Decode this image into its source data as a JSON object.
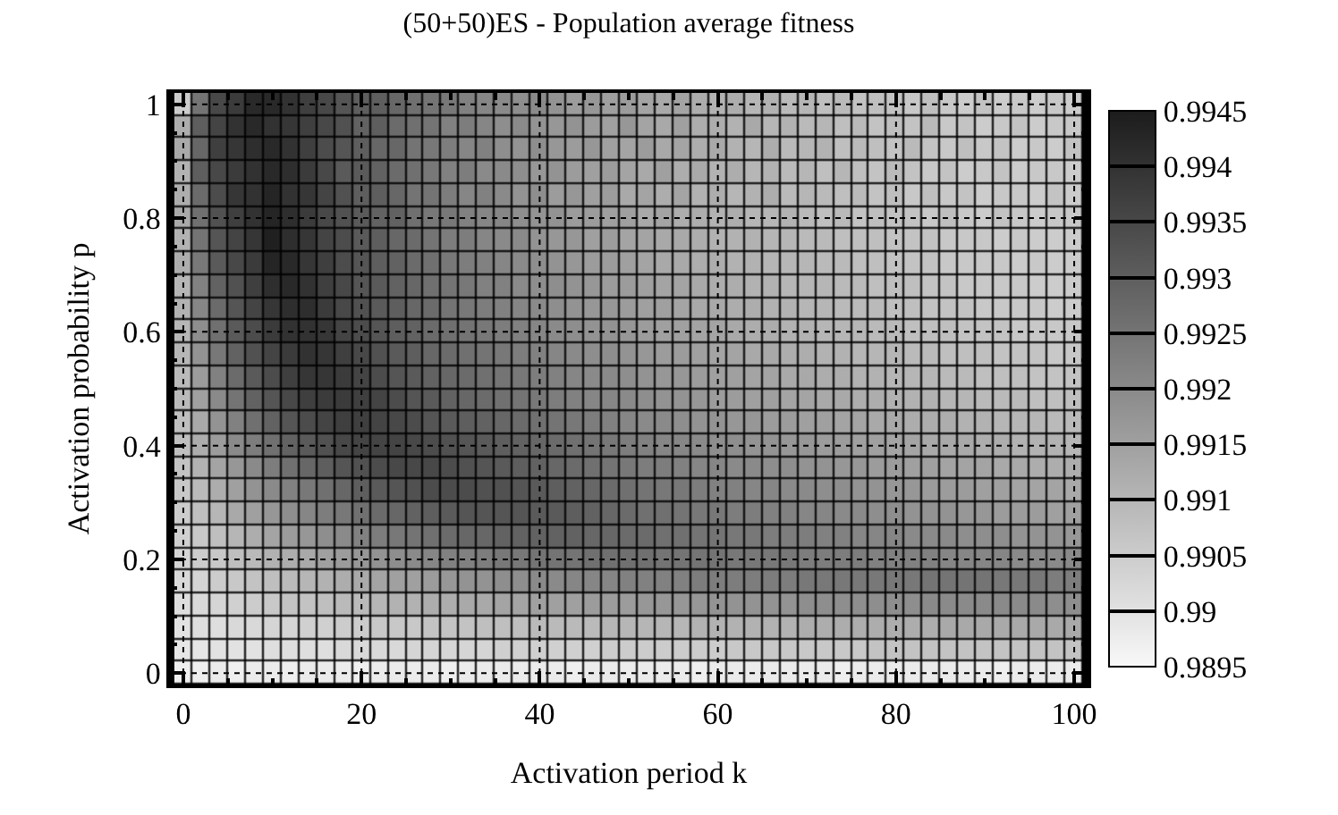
{
  "chart_data": {
    "type": "heatmap",
    "title": "(50+50)ES - Population average fitness",
    "xlabel": "Activation period k",
    "ylabel": "Activation probability p",
    "x": [
      0,
      2,
      4,
      6,
      8,
      10,
      12,
      14,
      16,
      18,
      20,
      22,
      24,
      26,
      28,
      30,
      32,
      34,
      36,
      38,
      40,
      42,
      44,
      46,
      48,
      50,
      52,
      54,
      56,
      58,
      60,
      62,
      64,
      66,
      68,
      70,
      72,
      74,
      76,
      78,
      80,
      82,
      84,
      86,
      88,
      90,
      92,
      94,
      96,
      98,
      100
    ],
    "y": [
      1.0,
      0.96,
      0.92,
      0.88,
      0.84,
      0.8,
      0.76,
      0.72,
      0.68,
      0.64,
      0.6,
      0.56,
      0.52,
      0.48,
      0.44,
      0.4,
      0.36,
      0.32,
      0.28,
      0.24,
      0.2,
      0.16,
      0.12,
      0.08,
      0.04,
      0.0
    ],
    "cells": [
      [
        0.9905,
        0.9925,
        0.9935,
        0.9938,
        0.9942,
        0.9942,
        0.994,
        0.9937,
        0.9935,
        0.9932,
        0.993,
        0.993,
        0.9928,
        0.9926,
        0.9925,
        0.9924,
        0.9922,
        0.9921,
        0.992,
        0.9919,
        0.992,
        0.9918,
        0.9916,
        0.9917,
        0.9915,
        0.9916,
        0.9914,
        0.9913,
        0.9914,
        0.9912,
        0.9911,
        0.9912,
        0.991,
        0.9911,
        0.9909,
        0.991,
        0.9908,
        0.9909,
        0.9907,
        0.9908,
        0.9907,
        0.9906,
        0.9908,
        0.9906,
        0.9905,
        0.9907,
        0.9905,
        0.9906,
        0.9905,
        0.9906,
        0.9905
      ],
      [
        0.9912,
        0.993,
        0.9936,
        0.994,
        0.9942,
        0.994,
        0.9939,
        0.9937,
        0.9935,
        0.9933,
        0.9929,
        0.993,
        0.9927,
        0.9926,
        0.9925,
        0.9922,
        0.9923,
        0.9921,
        0.9919,
        0.992,
        0.9918,
        0.9917,
        0.9918,
        0.9916,
        0.9915,
        0.9917,
        0.9914,
        0.9913,
        0.9915,
        0.9912,
        0.9912,
        0.9911,
        0.9913,
        0.991,
        0.9911,
        0.9909,
        0.991,
        0.9908,
        0.9909,
        0.9907,
        0.9908,
        0.9907,
        0.9909,
        0.9906,
        0.9907,
        0.9905,
        0.9906,
        0.9907,
        0.9905,
        0.9906,
        0.9906
      ],
      [
        0.9913,
        0.9928,
        0.9937,
        0.9939,
        0.9941,
        0.9942,
        0.994,
        0.9937,
        0.9934,
        0.9932,
        0.993,
        0.9928,
        0.9928,
        0.9925,
        0.9924,
        0.9923,
        0.9921,
        0.9922,
        0.9919,
        0.9918,
        0.9919,
        0.9917,
        0.9916,
        0.9917,
        0.9915,
        0.9914,
        0.9916,
        0.9913,
        0.9914,
        0.9912,
        0.9913,
        0.9911,
        0.991,
        0.9912,
        0.9909,
        0.991,
        0.9911,
        0.9908,
        0.9909,
        0.9908,
        0.9907,
        0.9909,
        0.9907,
        0.9906,
        0.9908,
        0.9906,
        0.9907,
        0.9905,
        0.9906,
        0.9905,
        0.9907
      ],
      [
        0.9911,
        0.993,
        0.9935,
        0.9938,
        0.994,
        0.9942,
        0.9941,
        0.9938,
        0.9935,
        0.9931,
        0.9931,
        0.9929,
        0.9927,
        0.9926,
        0.9924,
        0.9922,
        0.9923,
        0.992,
        0.992,
        0.9919,
        0.9917,
        0.9918,
        0.9916,
        0.9915,
        0.9916,
        0.9914,
        0.9913,
        0.9915,
        0.9912,
        0.9913,
        0.9911,
        0.9912,
        0.991,
        0.9911,
        0.9909,
        0.991,
        0.9908,
        0.991,
        0.9908,
        0.9907,
        0.9909,
        0.9907,
        0.9906,
        0.9907,
        0.9905,
        0.9906,
        0.9907,
        0.9905,
        0.9906,
        0.9906,
        0.9905
      ],
      [
        0.9912,
        0.9927,
        0.9934,
        0.9939,
        0.994,
        0.9943,
        0.994,
        0.9939,
        0.9936,
        0.9933,
        0.993,
        0.993,
        0.9928,
        0.9925,
        0.9925,
        0.9923,
        0.9921,
        0.9922,
        0.992,
        0.9918,
        0.9919,
        0.9916,
        0.9917,
        0.9915,
        0.9916,
        0.9913,
        0.9914,
        0.9912,
        0.9914,
        0.9911,
        0.9912,
        0.991,
        0.9911,
        0.9912,
        0.9909,
        0.991,
        0.9909,
        0.9908,
        0.9909,
        0.9907,
        0.9908,
        0.9906,
        0.9908,
        0.9906,
        0.9907,
        0.9905,
        0.9906,
        0.9906,
        0.9905,
        0.9907,
        0.9905
      ],
      [
        0.9913,
        0.9926,
        0.9933,
        0.9937,
        0.994,
        0.9943,
        0.9941,
        0.9938,
        0.9935,
        0.9933,
        0.9931,
        0.9929,
        0.9929,
        0.9926,
        0.9924,
        0.9924,
        0.9922,
        0.9921,
        0.9921,
        0.9919,
        0.9918,
        0.9918,
        0.9916,
        0.9916,
        0.9915,
        0.9915,
        0.9913,
        0.9914,
        0.9912,
        0.9912,
        0.9911,
        0.9912,
        0.991,
        0.991,
        0.9911,
        0.9909,
        0.9908,
        0.9909,
        0.9907,
        0.9908,
        0.9907,
        0.9907,
        0.9906,
        0.9908,
        0.9906,
        0.9905,
        0.9907,
        0.9906,
        0.9905,
        0.9906,
        0.9906
      ],
      [
        0.9911,
        0.9925,
        0.9932,
        0.9936,
        0.9939,
        0.9944,
        0.9941,
        0.9939,
        0.9936,
        0.9934,
        0.9931,
        0.993,
        0.9928,
        0.9927,
        0.9925,
        0.9923,
        0.9923,
        0.9921,
        0.992,
        0.992,
        0.9918,
        0.9917,
        0.9917,
        0.9915,
        0.9916,
        0.9914,
        0.9914,
        0.9913,
        0.9913,
        0.9912,
        0.9911,
        0.9911,
        0.9911,
        0.991,
        0.991,
        0.9909,
        0.9909,
        0.9908,
        0.9908,
        0.9908,
        0.9907,
        0.9907,
        0.9907,
        0.9906,
        0.9906,
        0.9906,
        0.9905,
        0.9906,
        0.9905,
        0.9905,
        0.9905
      ],
      [
        0.9912,
        0.9924,
        0.9931,
        0.9935,
        0.9938,
        0.9943,
        0.9942,
        0.9939,
        0.9937,
        0.9934,
        0.9932,
        0.993,
        0.9929,
        0.9927,
        0.9926,
        0.9924,
        0.9923,
        0.9922,
        0.9921,
        0.992,
        0.9919,
        0.9918,
        0.9917,
        0.9916,
        0.9916,
        0.9915,
        0.9914,
        0.9913,
        0.9913,
        0.9912,
        0.9912,
        0.9911,
        0.9911,
        0.991,
        0.991,
        0.991,
        0.9909,
        0.9909,
        0.9908,
        0.9908,
        0.9907,
        0.9907,
        0.9907,
        0.9906,
        0.9906,
        0.9906,
        0.9906,
        0.9905,
        0.9906,
        0.9905,
        0.9905
      ],
      [
        0.991,
        0.9922,
        0.9929,
        0.9933,
        0.9937,
        0.9941,
        0.9942,
        0.994,
        0.9937,
        0.9935,
        0.9932,
        0.9931,
        0.9929,
        0.9928,
        0.9926,
        0.9925,
        0.9924,
        0.9922,
        0.9922,
        0.992,
        0.9919,
        0.9919,
        0.9918,
        0.9917,
        0.9916,
        0.9916,
        0.9915,
        0.9914,
        0.9914,
        0.9913,
        0.9912,
        0.9912,
        0.9911,
        0.9911,
        0.991,
        0.991,
        0.991,
        0.9909,
        0.9909,
        0.9908,
        0.9908,
        0.9908,
        0.9907,
        0.9907,
        0.9906,
        0.9906,
        0.9906,
        0.9906,
        0.9905,
        0.9905,
        0.9905
      ],
      [
        0.9911,
        0.9921,
        0.9927,
        0.9932,
        0.9936,
        0.9939,
        0.9941,
        0.9941,
        0.9938,
        0.9935,
        0.9933,
        0.9931,
        0.993,
        0.9928,
        0.9927,
        0.9925,
        0.9924,
        0.9923,
        0.9922,
        0.9921,
        0.992,
        0.9919,
        0.9918,
        0.9917,
        0.9917,
        0.9916,
        0.9915,
        0.9915,
        0.9914,
        0.9913,
        0.9913,
        0.9912,
        0.9912,
        0.9911,
        0.9911,
        0.991,
        0.991,
        0.9909,
        0.9909,
        0.9909,
        0.9908,
        0.9908,
        0.9907,
        0.9907,
        0.9907,
        0.9906,
        0.9906,
        0.9906,
        0.9906,
        0.9905,
        0.9905
      ],
      [
        0.991,
        0.9919,
        0.9926,
        0.9931,
        0.9934,
        0.9938,
        0.994,
        0.994,
        0.9939,
        0.9936,
        0.9934,
        0.9932,
        0.993,
        0.9929,
        0.9927,
        0.9926,
        0.9925,
        0.9924,
        0.9923,
        0.9922,
        0.9921,
        0.992,
        0.9919,
        0.9918,
        0.9918,
        0.9917,
        0.9916,
        0.9915,
        0.9915,
        0.9914,
        0.9914,
        0.9913,
        0.9912,
        0.9912,
        0.9911,
        0.9911,
        0.991,
        0.991,
        0.991,
        0.9909,
        0.9909,
        0.9908,
        0.9908,
        0.9908,
        0.9907,
        0.9907,
        0.9907,
        0.9906,
        0.9906,
        0.9906,
        0.9906
      ],
      [
        0.991,
        0.9918,
        0.9924,
        0.9929,
        0.9933,
        0.9936,
        0.9938,
        0.994,
        0.9939,
        0.9937,
        0.9935,
        0.9933,
        0.9931,
        0.993,
        0.9928,
        0.9927,
        0.9926,
        0.9925,
        0.9924,
        0.9923,
        0.9922,
        0.9921,
        0.992,
        0.9919,
        0.9919,
        0.9918,
        0.9917,
        0.9916,
        0.9916,
        0.9915,
        0.9914,
        0.9914,
        0.9913,
        0.9913,
        0.9912,
        0.9912,
        0.9911,
        0.9911,
        0.991,
        0.991,
        0.991,
        0.9909,
        0.9909,
        0.9908,
        0.9908,
        0.9908,
        0.9907,
        0.9907,
        0.9907,
        0.9906,
        0.9906
      ],
      [
        0.9909,
        0.9916,
        0.9922,
        0.9927,
        0.9931,
        0.9934,
        0.9937,
        0.9939,
        0.9939,
        0.9938,
        0.9936,
        0.9934,
        0.9932,
        0.9931,
        0.9929,
        0.9928,
        0.9927,
        0.9926,
        0.9925,
        0.9924,
        0.9923,
        0.9922,
        0.9921,
        0.992,
        0.992,
        0.9919,
        0.9918,
        0.9917,
        0.9917,
        0.9916,
        0.9915,
        0.9915,
        0.9914,
        0.9914,
        0.9913,
        0.9913,
        0.9912,
        0.9912,
        0.9911,
        0.9911,
        0.991,
        0.991,
        0.991,
        0.9909,
        0.9909,
        0.9908,
        0.9908,
        0.9908,
        0.9907,
        0.9907,
        0.9907
      ],
      [
        0.9909,
        0.9915,
        0.992,
        0.9925,
        0.9929,
        0.9932,
        0.9935,
        0.9937,
        0.9938,
        0.9938,
        0.9937,
        0.9936,
        0.9934,
        0.9932,
        0.9931,
        0.9929,
        0.9928,
        0.9927,
        0.9926,
        0.9925,
        0.9924,
        0.9923,
        0.9922,
        0.9921,
        0.9921,
        0.992,
        0.9919,
        0.9918,
        0.9918,
        0.9917,
        0.9916,
        0.9916,
        0.9915,
        0.9915,
        0.9914,
        0.9914,
        0.9913,
        0.9913,
        0.9912,
        0.9912,
        0.9911,
        0.9911,
        0.9911,
        0.991,
        0.991,
        0.9909,
        0.9909,
        0.9909,
        0.9908,
        0.9908,
        0.9908
      ],
      [
        0.9908,
        0.9913,
        0.9918,
        0.9922,
        0.9926,
        0.9929,
        0.9932,
        0.9934,
        0.9936,
        0.9937,
        0.9937,
        0.9936,
        0.9935,
        0.9934,
        0.9932,
        0.9931,
        0.993,
        0.9929,
        0.9928,
        0.9927,
        0.9926,
        0.9925,
        0.9924,
        0.9923,
        0.9922,
        0.9921,
        0.992,
        0.992,
        0.9919,
        0.9918,
        0.9918,
        0.9917,
        0.9917,
        0.9916,
        0.9916,
        0.9915,
        0.9915,
        0.9914,
        0.9914,
        0.9913,
        0.9913,
        0.9912,
        0.9912,
        0.9912,
        0.9911,
        0.9911,
        0.991,
        0.991,
        0.991,
        0.9909,
        0.9909
      ],
      [
        0.9908,
        0.9912,
        0.9916,
        0.992,
        0.9923,
        0.9926,
        0.9929,
        0.9931,
        0.9933,
        0.9935,
        0.9936,
        0.9936,
        0.9936,
        0.9935,
        0.9934,
        0.9933,
        0.9932,
        0.9931,
        0.993,
        0.9929,
        0.9928,
        0.9927,
        0.9926,
        0.9925,
        0.9924,
        0.9923,
        0.9922,
        0.9921,
        0.9921,
        0.992,
        0.9919,
        0.9919,
        0.9918,
        0.9918,
        0.9917,
        0.9917,
        0.9916,
        0.9916,
        0.9915,
        0.9915,
        0.9914,
        0.9914,
        0.9913,
        0.9913,
        0.9913,
        0.9912,
        0.9912,
        0.9911,
        0.9911,
        0.9911,
        0.991
      ],
      [
        0.9907,
        0.9911,
        0.9914,
        0.9917,
        0.992,
        0.9923,
        0.9926,
        0.9928,
        0.993,
        0.9932,
        0.9933,
        0.9934,
        0.9935,
        0.9935,
        0.9935,
        0.9934,
        0.9933,
        0.9932,
        0.9931,
        0.993,
        0.9929,
        0.9928,
        0.9927,
        0.9926,
        0.9925,
        0.9924,
        0.9923,
        0.9923,
        0.9922,
        0.9921,
        0.9921,
        0.992,
        0.992,
        0.9919,
        0.9919,
        0.9918,
        0.9918,
        0.9917,
        0.9917,
        0.9916,
        0.9916,
        0.9915,
        0.9915,
        0.9914,
        0.9914,
        0.9914,
        0.9913,
        0.9913,
        0.9912,
        0.9912,
        0.9912
      ],
      [
        0.9906,
        0.9909,
        0.9912,
        0.9915,
        0.9918,
        0.992,
        0.9922,
        0.9924,
        0.9926,
        0.9928,
        0.993,
        0.9931,
        0.9932,
        0.9933,
        0.9934,
        0.9934,
        0.9934,
        0.9933,
        0.9933,
        0.9932,
        0.9931,
        0.993,
        0.9929,
        0.9928,
        0.9927,
        0.9926,
        0.9925,
        0.9924,
        0.9924,
        0.9923,
        0.9922,
        0.9922,
        0.9921,
        0.9921,
        0.992,
        0.992,
        0.9919,
        0.9919,
        0.9918,
        0.9918,
        0.9917,
        0.9917,
        0.9916,
        0.9916,
        0.9916,
        0.9915,
        0.9915,
        0.9914,
        0.9914,
        0.9914,
        0.9913
      ],
      [
        0.9905,
        0.9908,
        0.991,
        0.9913,
        0.9915,
        0.9917,
        0.9919,
        0.9921,
        0.9923,
        0.9924,
        0.9926,
        0.9927,
        0.9928,
        0.9929,
        0.993,
        0.9931,
        0.9932,
        0.9932,
        0.9932,
        0.9932,
        0.9931,
        0.9931,
        0.993,
        0.9929,
        0.9928,
        0.9927,
        0.9926,
        0.9926,
        0.9925,
        0.9924,
        0.9924,
        0.9923,
        0.9923,
        0.9922,
        0.9922,
        0.9921,
        0.9921,
        0.992,
        0.992,
        0.9919,
        0.9919,
        0.9918,
        0.9918,
        0.9918,
        0.9917,
        0.9917,
        0.9916,
        0.9916,
        0.9916,
        0.9915,
        0.9915
      ],
      [
        0.9904,
        0.9906,
        0.9908,
        0.991,
        0.9912,
        0.9914,
        0.9916,
        0.9917,
        0.9919,
        0.992,
        0.9922,
        0.9923,
        0.9924,
        0.9925,
        0.9926,
        0.9927,
        0.9928,
        0.9928,
        0.9929,
        0.9929,
        0.9929,
        0.9929,
        0.9929,
        0.9928,
        0.9928,
        0.9927,
        0.9927,
        0.9926,
        0.9926,
        0.9925,
        0.9925,
        0.9924,
        0.9924,
        0.9923,
        0.9923,
        0.9923,
        0.9922,
        0.9922,
        0.9921,
        0.9921,
        0.9921,
        0.992,
        0.992,
        0.992,
        0.9919,
        0.9919,
        0.9919,
        0.9918,
        0.9918,
        0.9918,
        0.9917
      ],
      [
        0.9903,
        0.9905,
        0.9906,
        0.9908,
        0.9909,
        0.9911,
        0.9912,
        0.9913,
        0.9915,
        0.9916,
        0.9917,
        0.9918,
        0.9919,
        0.992,
        0.9921,
        0.9922,
        0.9922,
        0.9923,
        0.9924,
        0.9924,
        0.9925,
        0.9925,
        0.9925,
        0.9926,
        0.9926,
        0.9926,
        0.9926,
        0.9925,
        0.9925,
        0.9925,
        0.9925,
        0.9924,
        0.9924,
        0.9924,
        0.9924,
        0.9923,
        0.9923,
        0.9923,
        0.9923,
        0.9922,
        0.9922,
        0.9922,
        0.9922,
        0.9921,
        0.9921,
        0.9921,
        0.9921,
        0.992,
        0.992,
        0.992,
        0.992
      ],
      [
        0.9902,
        0.9903,
        0.9905,
        0.9906,
        0.9907,
        0.9908,
        0.9909,
        0.991,
        0.9911,
        0.9912,
        0.9913,
        0.9914,
        0.9915,
        0.9915,
        0.9916,
        0.9917,
        0.9918,
        0.9918,
        0.9919,
        0.9919,
        0.992,
        0.992,
        0.9921,
        0.9921,
        0.9921,
        0.9922,
        0.9922,
        0.9922,
        0.9922,
        0.9923,
        0.9923,
        0.9923,
        0.9923,
        0.9923,
        0.9923,
        0.9924,
        0.9924,
        0.9924,
        0.9924,
        0.9924,
        0.9924,
        0.9924,
        0.9925,
        0.9925,
        0.9925,
        0.9925,
        0.9924,
        0.9924,
        0.9924,
        0.9923,
        0.9923
      ],
      [
        0.9901,
        0.9902,
        0.9903,
        0.9904,
        0.9905,
        0.9906,
        0.9907,
        0.9907,
        0.9908,
        0.9909,
        0.9909,
        0.991,
        0.9911,
        0.9911,
        0.9912,
        0.9912,
        0.9913,
        0.9913,
        0.9914,
        0.9914,
        0.9915,
        0.9915,
        0.9915,
        0.9916,
        0.9916,
        0.9916,
        0.9917,
        0.9917,
        0.9917,
        0.9917,
        0.9918,
        0.9918,
        0.9918,
        0.9918,
        0.9918,
        0.9919,
        0.9919,
        0.9919,
        0.9919,
        0.9919,
        0.9919,
        0.9919,
        0.992,
        0.992,
        0.992,
        0.992,
        0.992,
        0.992,
        0.992,
        0.9919,
        0.9919
      ],
      [
        0.99,
        0.9901,
        0.9901,
        0.9902,
        0.9902,
        0.9903,
        0.9903,
        0.9904,
        0.9904,
        0.9905,
        0.9905,
        0.9906,
        0.9906,
        0.9906,
        0.9907,
        0.9907,
        0.9907,
        0.9908,
        0.9908,
        0.9908,
        0.9909,
        0.9909,
        0.9909,
        0.9909,
        0.991,
        0.991,
        0.991,
        0.991,
        0.991,
        0.9911,
        0.9911,
        0.9911,
        0.9911,
        0.9911,
        0.9911,
        0.9912,
        0.9912,
        0.9912,
        0.9912,
        0.9912,
        0.9912,
        0.9912,
        0.9912,
        0.9913,
        0.9913,
        0.9913,
        0.9913,
        0.9913,
        0.9913,
        0.9913,
        0.9913
      ],
      [
        0.9899,
        0.9899,
        0.99,
        0.99,
        0.99,
        0.9901,
        0.9901,
        0.9901,
        0.9901,
        0.9902,
        0.9902,
        0.9902,
        0.9902,
        0.9903,
        0.9903,
        0.9903,
        0.9903,
        0.9903,
        0.9904,
        0.9904,
        0.9904,
        0.9904,
        0.9904,
        0.9904,
        0.9905,
        0.9905,
        0.9905,
        0.9905,
        0.9905,
        0.9905,
        0.9905,
        0.9906,
        0.9906,
        0.9906,
        0.9906,
        0.9906,
        0.9906,
        0.9906,
        0.9906,
        0.9907,
        0.9907,
        0.9907,
        0.9907,
        0.9907,
        0.9907,
        0.9907,
        0.9907,
        0.9907,
        0.9907,
        0.9907,
        0.9907
      ],
      [
        0.9897,
        0.9897,
        0.9898,
        0.9897,
        0.9898,
        0.9898,
        0.9897,
        0.9898,
        0.9898,
        0.9898,
        0.9897,
        0.9898,
        0.9898,
        0.9898,
        0.9898,
        0.9897,
        0.9898,
        0.9898,
        0.9898,
        0.9898,
        0.9898,
        0.9898,
        0.9897,
        0.9898,
        0.9898,
        0.9898,
        0.9898,
        0.9898,
        0.9898,
        0.9897,
        0.9898,
        0.9898,
        0.9898,
        0.9898,
        0.9898,
        0.9898,
        0.9898,
        0.9897,
        0.9898,
        0.9898,
        0.9898,
        0.9898,
        0.9898,
        0.9898,
        0.9898,
        0.9898,
        0.9897,
        0.9898,
        0.9898,
        0.9898,
        0.9898
      ]
    ],
    "xlim": [
      -1.5,
      101.5
    ],
    "ylim": [
      -0.02,
      1.02
    ],
    "xticks": [
      0,
      20,
      40,
      60,
      80,
      100
    ],
    "yticks": [
      0,
      0.2,
      0.4,
      0.6,
      0.8,
      1
    ],
    "clim": [
      0.9895,
      0.9945
    ],
    "cticks": [
      0.9895,
      0.99,
      0.9905,
      0.991,
      0.9915,
      0.992,
      0.9925,
      0.993,
      0.9935,
      0.994,
      0.9945
    ],
    "grid": true
  }
}
